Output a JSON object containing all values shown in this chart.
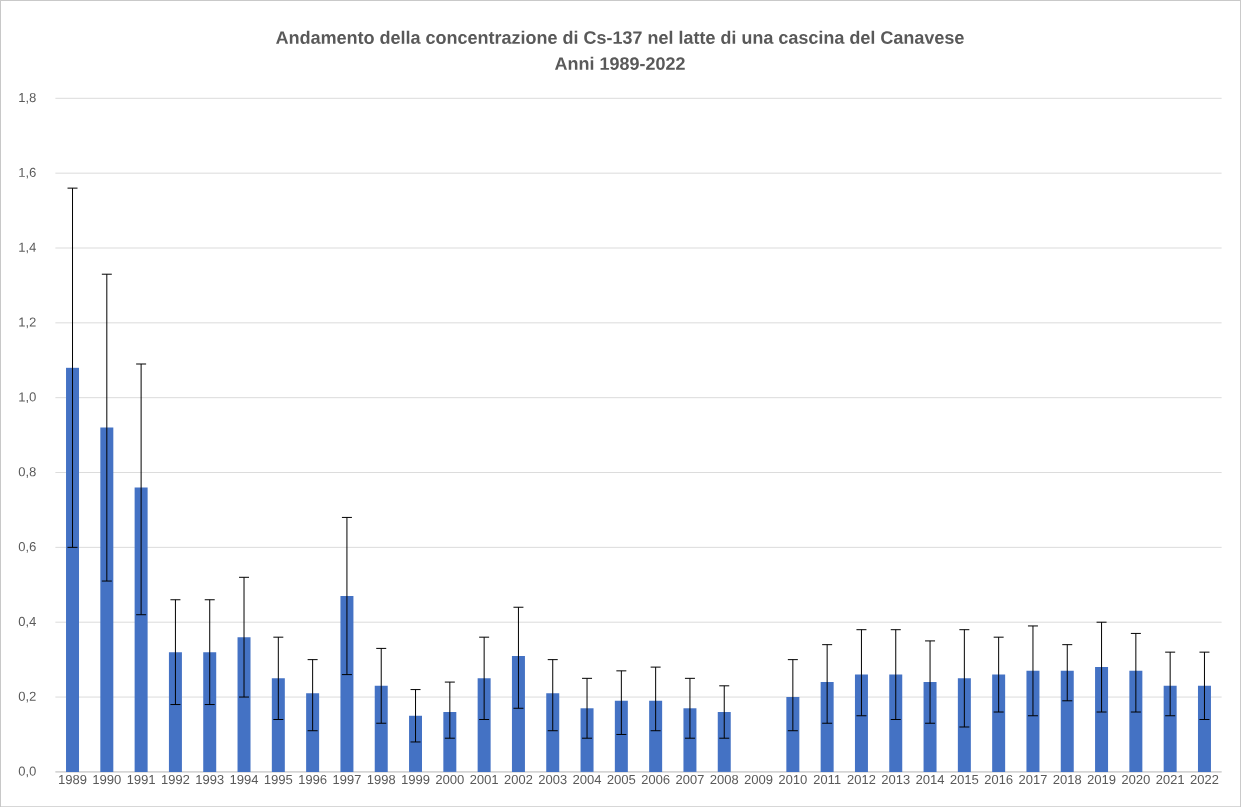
{
  "chart_data": {
    "type": "bar",
    "title": "Andamento della concentrazione di Cs-137 nel latte di una cascina del Canavese",
    "subtitle": "Anni 1989-2022",
    "categories": [
      "1989",
      "1990",
      "1991",
      "1992",
      "1993",
      "1994",
      "1995",
      "1996",
      "1997",
      "1998",
      "1999",
      "2000",
      "2001",
      "2002",
      "2003",
      "2004",
      "2005",
      "2006",
      "2007",
      "2008",
      "2009",
      "2010",
      "2011",
      "2012",
      "2013",
      "2014",
      "2015",
      "2016",
      "2017",
      "2018",
      "2019",
      "2020",
      "2021",
      "2022"
    ],
    "values": [
      1.08,
      0.92,
      0.76,
      0.32,
      0.32,
      0.36,
      0.25,
      0.21,
      0.47,
      0.23,
      0.15,
      0.16,
      0.25,
      0.31,
      0.21,
      0.17,
      0.19,
      0.19,
      0.17,
      0.16,
      null,
      0.2,
      0.24,
      0.26,
      0.26,
      0.24,
      0.25,
      0.26,
      0.27,
      0.27,
      0.28,
      0.27,
      0.23,
      0.23
    ],
    "errors": [
      [
        0.6,
        1.56
      ],
      [
        0.51,
        1.33
      ],
      [
        0.42,
        1.09
      ],
      [
        0.18,
        0.46
      ],
      [
        0.18,
        0.46
      ],
      [
        0.2,
        0.52
      ],
      [
        0.14,
        0.36
      ],
      [
        0.11,
        0.3
      ],
      [
        0.26,
        0.68
      ],
      [
        0.13,
        0.33
      ],
      [
        0.08,
        0.22
      ],
      [
        0.09,
        0.24
      ],
      [
        0.14,
        0.36
      ],
      [
        0.17,
        0.44
      ],
      [
        0.11,
        0.3
      ],
      [
        0.09,
        0.25
      ],
      [
        0.1,
        0.27
      ],
      [
        0.11,
        0.28
      ],
      [
        0.09,
        0.25
      ],
      [
        0.09,
        0.23
      ],
      null,
      [
        0.11,
        0.3
      ],
      [
        0.13,
        0.34
      ],
      [
        0.15,
        0.38
      ],
      [
        0.14,
        0.38
      ],
      [
        0.13,
        0.35
      ],
      [
        0.12,
        0.38
      ],
      [
        0.16,
        0.36
      ],
      [
        0.15,
        0.39
      ],
      [
        0.19,
        0.34
      ],
      [
        0.16,
        0.4
      ],
      [
        0.16,
        0.37
      ],
      [
        0.15,
        0.32
      ],
      [
        0.14,
        0.32
      ]
    ],
    "color": "#4472c4",
    "ylim": [
      0,
      1.8
    ],
    "yticks": [
      {
        "value": 0,
        "label": "0,0"
      },
      {
        "value": 0.2,
        "label": "0,2"
      },
      {
        "value": 0.4,
        "label": "0,4"
      },
      {
        "value": 0.6,
        "label": "0,6"
      },
      {
        "value": 0.8,
        "label": "0,8"
      },
      {
        "value": 1.0,
        "label": "1,0"
      },
      {
        "value": 1.2,
        "label": "1,2"
      },
      {
        "value": 1.4,
        "label": "1,4"
      },
      {
        "value": 1.6,
        "label": "1,6"
      },
      {
        "value": 1.8,
        "label": "1,8"
      }
    ],
    "grid": "y"
  }
}
